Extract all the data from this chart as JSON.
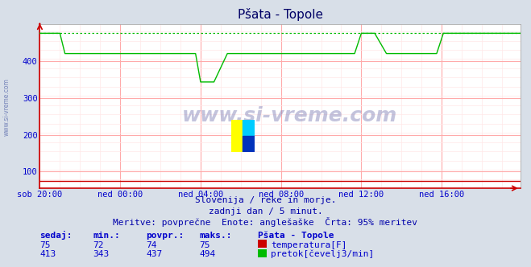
{
  "title": "Pšata - Topole",
  "background_color": "#d8dfe8",
  "plot_bg_color": "#ffffff",
  "grid_color_major": "#ffaaaa",
  "grid_color_minor": "#ffe8e8",
  "xlabel_ticks": [
    "sob 20:00",
    "ned 00:00",
    "ned 04:00",
    "ned 08:00",
    "ned 12:00",
    "ned 16:00"
  ],
  "yticks": [
    100,
    200,
    300,
    400
  ],
  "ylim": [
    55,
    500
  ],
  "xlim": [
    0,
    287
  ],
  "subtitle1": "Slovenija / reke in morje.",
  "subtitle2": "zadnji dan / 5 minut.",
  "subtitle3": "Meritve: povprečne  Enote: anglešaške  Črta: 95% meritev",
  "watermark": "www.si-vreme.com",
  "table_headers": [
    "sedaj:",
    "min.:",
    "povpr.:",
    "maks.:",
    "Pšata - Topole"
  ],
  "row1": [
    "75",
    "72",
    "74",
    "75"
  ],
  "row2": [
    "413",
    "343",
    "437",
    "494"
  ],
  "legend1_color": "#cc0000",
  "legend1_label": "temperatura[F]",
  "legend2_color": "#00bb00",
  "legend2_label": "pretok[čevelj3/min]",
  "temp_color": "#cc0000",
  "flow_color": "#00bb00",
  "tick_label_color": "#0000cc",
  "subtitle_color": "#0000aa",
  "table_header_color": "#0000cc",
  "title_color": "#000066",
  "n_points": 288,
  "tick_positions_x": [
    0,
    48,
    96,
    144,
    192,
    240
  ],
  "flow_high": 475,
  "flow_mid": 420,
  "flow_dip": 343,
  "temp_flat": 75
}
